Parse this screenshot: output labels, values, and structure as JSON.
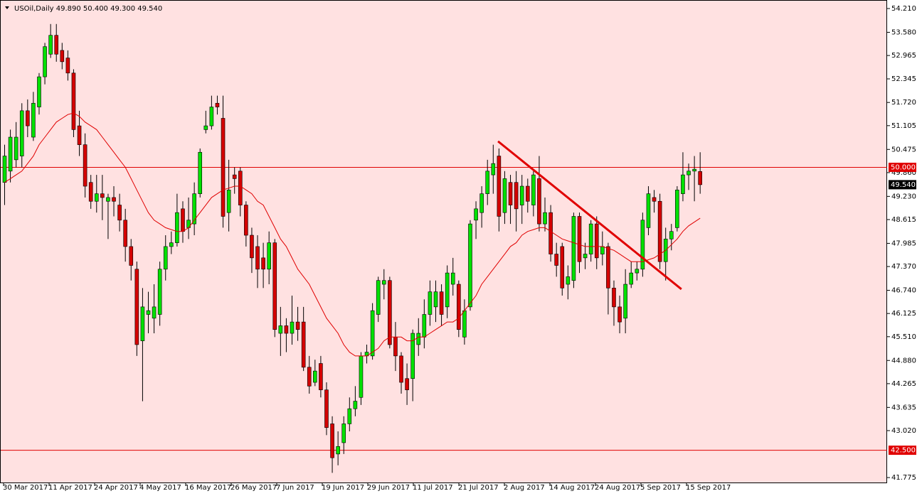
{
  "chart_data": {
    "type": "candlestick",
    "title": "USOil,Daily  49.890 50.400 49.300 49.540",
    "background": "#ffe1e1",
    "up_color": "#00e000",
    "down_color": "#d40000",
    "wick_color": "#000000",
    "ylim": [
      41.682,
      54.361
    ],
    "yticks": [
      {
        "value": 54.21,
        "label": "54.210"
      },
      {
        "value": 53.58,
        "label": "53.580"
      },
      {
        "value": 52.965,
        "label": "52.965"
      },
      {
        "value": 52.345,
        "label": "52.345"
      },
      {
        "value": 51.72,
        "label": "51.720"
      },
      {
        "value": 51.105,
        "label": "51.105"
      },
      {
        "value": 50.475,
        "label": "50.475"
      },
      {
        "value": 49.86,
        "label": "49.860"
      },
      {
        "value": 49.23,
        "label": "49.230"
      },
      {
        "value": 48.615,
        "label": "48.615"
      },
      {
        "value": 47.985,
        "label": "47.985"
      },
      {
        "value": 47.37,
        "label": "47.370"
      },
      {
        "value": 46.74,
        "label": "46.740"
      },
      {
        "value": 46.125,
        "label": "46.125"
      },
      {
        "value": 45.51,
        "label": "45.510"
      },
      {
        "value": 44.88,
        "label": "44.880"
      },
      {
        "value": 44.265,
        "label": "44.265"
      },
      {
        "value": 43.635,
        "label": "43.635"
      },
      {
        "value": 43.02,
        "label": "43.020"
      },
      {
        "value": 41.775,
        "label": "41.775"
      }
    ],
    "x_labels": [
      "30 Mar 2017",
      "11 Apr 2017",
      "24 Apr 2017",
      "4 May 2017",
      "16 May 2017",
      "26 May 2017",
      "7 Jun 2017",
      "19 Jun 2017",
      "29 Jun 2017",
      "11 Jul 2017",
      "21 Jul 2017",
      "2 Aug 2017",
      "14 Aug 2017",
      "24 Aug 2017",
      "5 Sep 2017",
      "15 Sep 2017"
    ],
    "open": [
      49.6,
      49.9,
      50.2,
      50.3,
      51.5,
      50.8,
      51.6,
      52.4,
      53.0,
      53.5,
      53.1,
      52.9,
      52.5,
      51.1,
      50.6,
      49.6,
      49.1,
      49.3,
      49.1,
      49.2,
      49.0,
      48.6,
      47.9,
      47.3,
      45.4,
      46.1,
      46.0,
      46.1,
      47.3,
      47.9,
      48.0,
      48.9,
      48.4,
      48.5,
      49.3,
      51.0,
      51.1,
      51.7,
      51.3,
      48.8,
      49.8,
      49.9,
      49.0,
      48.2,
      47.9,
      47.6,
      47.3,
      48.0,
      45.6,
      45.8,
      45.6,
      45.9,
      45.9,
      44.7,
      44.3,
      44.8,
      44.1,
      43.2,
      42.4,
      42.7,
      43.2,
      43.6,
      43.9,
      45.0,
      45.0,
      46.1,
      46.9,
      47.0,
      45.5,
      45.0,
      44.4,
      44.4,
      45.3,
      45.5,
      46.1,
      46.3,
      46.7,
      46.3,
      46.9,
      46.9,
      45.5,
      46.3,
      48.6,
      48.8,
      49.3,
      49.8,
      50.3,
      48.8,
      49.6,
      49.6,
      49.0,
      49.5,
      49.0,
      49.7,
      48.5,
      48.8,
      47.7,
      47.9,
      46.9,
      47.0,
      48.7,
      47.6,
      47.7,
      48.5,
      47.7,
      47.9,
      46.8,
      46.3,
      46.0,
      46.9,
      47.2,
      47.3,
      48.4,
      49.2,
      49.1,
      47.5,
      48.1,
      48.4,
      49.3,
      49.8,
      49.9,
      49.89
    ],
    "high": [
      50.6,
      51.0,
      51.2,
      51.7,
      51.8,
      52.0,
      52.5,
      53.3,
      53.8,
      53.8,
      53.3,
      53.1,
      52.6,
      51.5,
      50.9,
      49.8,
      49.8,
      49.8,
      49.3,
      49.5,
      49.3,
      48.9,
      48.1,
      47.5,
      46.8,
      46.7,
      46.9,
      47.5,
      48.2,
      48.3,
      49.3,
      49.1,
      49.2,
      49.6,
      50.5,
      51.5,
      51.9,
      51.9,
      51.9,
      50.2,
      50.0,
      50.0,
      49.1,
      48.4,
      48.2,
      48.0,
      48.3,
      48.1,
      46.3,
      46.0,
      46.6,
      46.3,
      46.3,
      45.0,
      44.9,
      45.0,
      44.3,
      43.4,
      43.0,
      43.4,
      43.9,
      44.2,
      45.1,
      45.3,
      46.4,
      47.1,
      47.3,
      47.1,
      45.9,
      45.1,
      44.8,
      45.7,
      46.0,
      46.5,
      47.0,
      47.0,
      46.9,
      47.4,
      47.6,
      47.0,
      46.5,
      48.6,
      49.1,
      49.5,
      50.2,
      50.6,
      50.5,
      49.9,
      49.8,
      49.9,
      49.8,
      49.7,
      49.9,
      50.3,
      49.2,
      49.0,
      48.0,
      48.0,
      47.4,
      48.8,
      48.8,
      48.0,
      48.6,
      48.7,
      48.3,
      48.0,
      47.0,
      46.6,
      47.3,
      47.5,
      47.5,
      48.8,
      49.5,
      49.4,
      49.3,
      48.4,
      48.5,
      49.5,
      50.4,
      50.1,
      50.3,
      50.4
    ],
    "low": [
      49.0,
      49.6,
      50.0,
      50.0,
      50.8,
      50.7,
      51.4,
      52.2,
      52.9,
      52.8,
      52.6,
      52.3,
      50.8,
      50.3,
      49.2,
      48.9,
      48.8,
      48.6,
      48.1,
      48.7,
      48.3,
      47.5,
      47.0,
      45.0,
      43.8,
      45.6,
      45.6,
      45.8,
      47.0,
      47.7,
      47.9,
      48.0,
      48.1,
      48.2,
      49.2,
      50.9,
      51.0,
      51.4,
      48.4,
      48.3,
      49.3,
      48.7,
      47.9,
      47.2,
      46.8,
      46.8,
      46.9,
      45.5,
      45.0,
      45.1,
      45.3,
      45.4,
      44.6,
      44.0,
      44.2,
      43.9,
      42.9,
      41.9,
      42.1,
      42.4,
      43.0,
      43.4,
      43.7,
      44.8,
      44.9,
      45.9,
      46.5,
      45.2,
      44.6,
      44.0,
      43.7,
      43.8,
      45.0,
      45.2,
      45.8,
      45.9,
      45.8,
      46.0,
      46.6,
      45.5,
      45.3,
      46.2,
      48.1,
      48.4,
      49.0,
      49.3,
      48.3,
      48.5,
      48.5,
      48.3,
      48.5,
      48.8,
      48.7,
      48.3,
      48.3,
      47.5,
      47.1,
      46.6,
      46.5,
      46.8,
      47.2,
      47.3,
      47.5,
      47.3,
      47.4,
      46.1,
      45.8,
      45.6,
      45.6,
      46.8,
      47.0,
      47.1,
      48.2,
      48.8,
      47.3,
      47.0,
      47.8,
      48.3,
      49.1,
      49.4,
      49.1,
      49.3
    ],
    "close": [
      50.3,
      50.8,
      50.8,
      51.5,
      51.1,
      51.7,
      52.4,
      53.2,
      53.5,
      53.0,
      52.8,
      52.5,
      51.0,
      50.6,
      49.5,
      49.1,
      49.3,
      49.2,
      49.2,
      49.1,
      48.6,
      47.9,
      47.4,
      45.3,
      46.3,
      46.2,
      46.3,
      47.3,
      47.9,
      48.0,
      48.8,
      48.3,
      48.6,
      49.3,
      50.4,
      51.1,
      51.6,
      51.6,
      48.7,
      49.4,
      49.7,
      49.0,
      48.2,
      47.6,
      47.3,
      47.3,
      48.0,
      45.7,
      45.8,
      45.6,
      45.9,
      45.7,
      44.7,
      44.2,
      44.6,
      44.1,
      43.1,
      42.3,
      42.6,
      43.2,
      43.6,
      43.8,
      45.0,
      45.1,
      46.2,
      47.0,
      47.0,
      45.3,
      45.0,
      44.3,
      44.1,
      45.6,
      45.6,
      46.1,
      46.7,
      46.7,
      46.1,
      47.2,
      47.2,
      45.7,
      46.2,
      48.5,
      48.9,
      49.3,
      49.9,
      50.1,
      48.7,
      49.7,
      49.0,
      48.9,
      49.5,
      49.1,
      49.8,
      48.5,
      48.8,
      47.7,
      47.4,
      46.8,
      47.1,
      48.7,
      47.5,
      47.7,
      48.5,
      47.6,
      47.9,
      46.8,
      46.3,
      45.9,
      46.9,
      47.2,
      47.3,
      48.6,
      49.3,
      49.1,
      47.5,
      48.1,
      48.3,
      49.4,
      49.8,
      49.9,
      49.95,
      49.54
    ],
    "ma": {
      "color": "#e00000",
      "values": [
        49.6,
        49.7,
        49.8,
        49.9,
        50.1,
        50.3,
        50.6,
        50.8,
        51.0,
        51.2,
        51.3,
        51.4,
        51.44,
        51.35,
        51.2,
        51.1,
        51.0,
        50.8,
        50.6,
        50.4,
        50.2,
        50.0,
        49.7,
        49.4,
        49.1,
        48.8,
        48.6,
        48.5,
        48.4,
        48.35,
        48.3,
        48.3,
        48.4,
        48.6,
        48.8,
        49.0,
        49.2,
        49.3,
        49.4,
        49.45,
        49.5,
        49.5,
        49.4,
        49.3,
        49.1,
        49.0,
        48.7,
        48.4,
        48.1,
        47.9,
        47.6,
        47.3,
        47.1,
        46.9,
        46.6,
        46.3,
        46.0,
        45.8,
        45.6,
        45.3,
        45.1,
        45.0,
        45.0,
        45.0,
        45.1,
        45.2,
        45.4,
        45.5,
        45.5,
        45.5,
        45.4,
        45.4,
        45.5,
        45.5,
        45.6,
        45.7,
        45.8,
        45.9,
        45.9,
        46.0,
        46.2,
        46.4,
        46.6,
        46.9,
        47.1,
        47.3,
        47.5,
        47.7,
        47.9,
        48.0,
        48.2,
        48.3,
        48.35,
        48.4,
        48.4,
        48.3,
        48.2,
        48.1,
        48.05,
        48.0,
        47.95,
        47.9,
        47.9,
        47.9,
        47.9,
        47.85,
        47.8,
        47.7,
        47.6,
        47.5,
        47.5,
        47.5,
        47.55,
        47.6,
        47.7,
        47.8,
        47.95,
        48.1,
        48.3,
        48.45,
        48.55,
        48.65
      ]
    },
    "levels": [
      {
        "value": 50.0,
        "label": "50.000"
      },
      {
        "value": 42.5,
        "label": "42.500"
      }
    ],
    "level_color": "#e00000",
    "last_price": {
      "value": 49.54,
      "label": "49.540"
    },
    "trendline": {
      "x": [
        85.9,
        117.8
      ],
      "y": [
        50.69,
        46.77
      ],
      "color": "#e00000"
    }
  }
}
